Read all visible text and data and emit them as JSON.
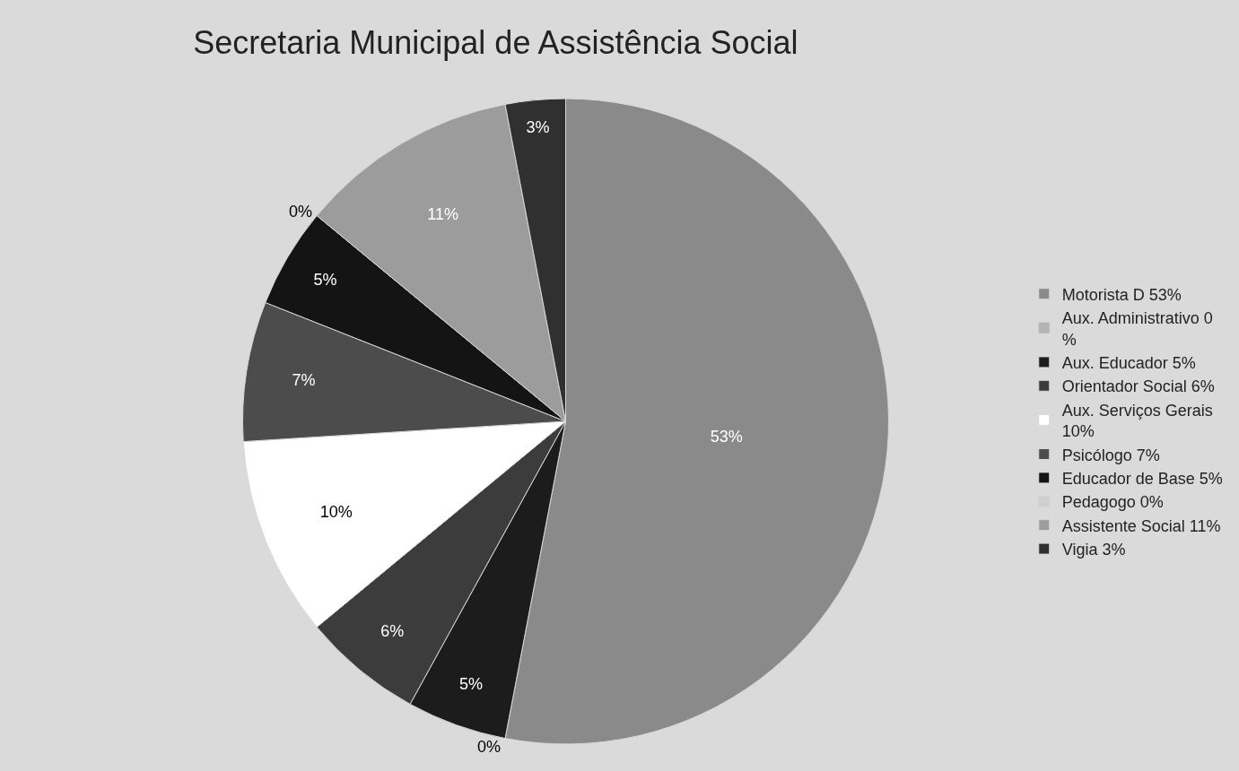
{
  "chart_data": {
    "type": "pie",
    "title": "Secretaria Municipal de Assistência Social",
    "categories": [
      "Motorista D 53%",
      "Aux. Administrativo 0 %",
      "Aux. Educador 5%",
      "Orientador Social 6%",
      "Aux. Serviços Gerais 10%",
      "Psicólogo 7%",
      "Educador de Base 5%",
      "Pedagogo 0%",
      "Assistente Social 11%",
      "Vigia 3%"
    ],
    "values": [
      53,
      0,
      5,
      6,
      10,
      7,
      5,
      0,
      11,
      3
    ],
    "colors": [
      "#8a8a8a",
      "#b4b4b4",
      "#1c1c1c",
      "#3c3c3c",
      "#ffffff",
      "#4c4c4c",
      "#141414",
      "#cfcfcf",
      "#9c9c9c",
      "#303030"
    ],
    "value_labels": [
      "53%",
      "0%",
      "5%",
      "6%",
      "10%",
      "7%",
      "5%",
      "0%",
      "11%",
      "3%"
    ],
    "legend": "right"
  }
}
